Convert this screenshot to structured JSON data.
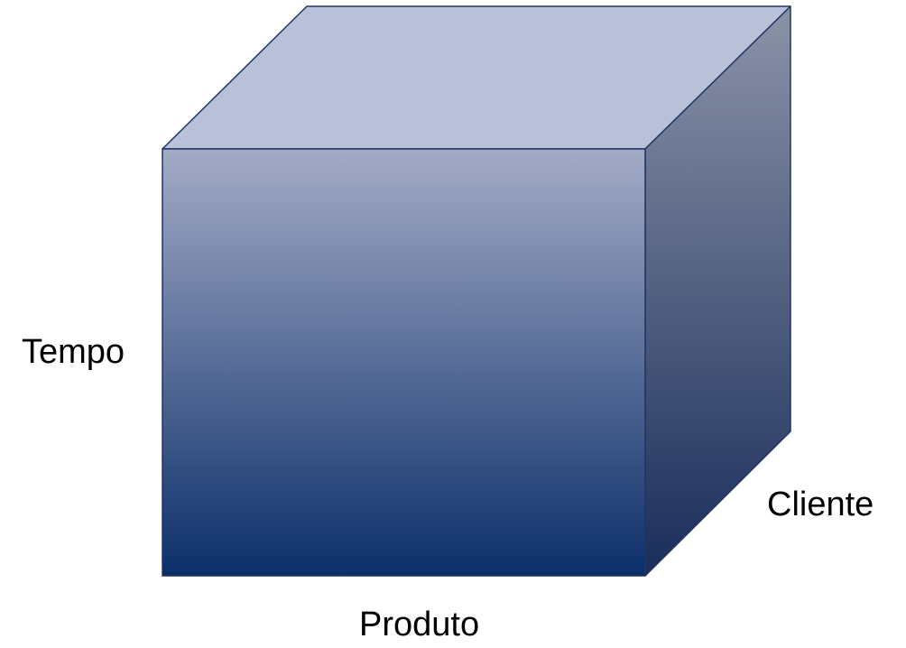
{
  "axes": {
    "vertical_label": "Tempo",
    "depth_label": "Cliente",
    "horizontal_label": "Produto"
  },
  "colors": {
    "top_face": "#b9c1d8",
    "front_gradient_start": "#a4abc6",
    "front_gradient_end": "#0c2f6a",
    "side_gradient_start": "#8c93a8",
    "side_gradient_end": "#1a2d5a",
    "edge": "#1f3566"
  }
}
